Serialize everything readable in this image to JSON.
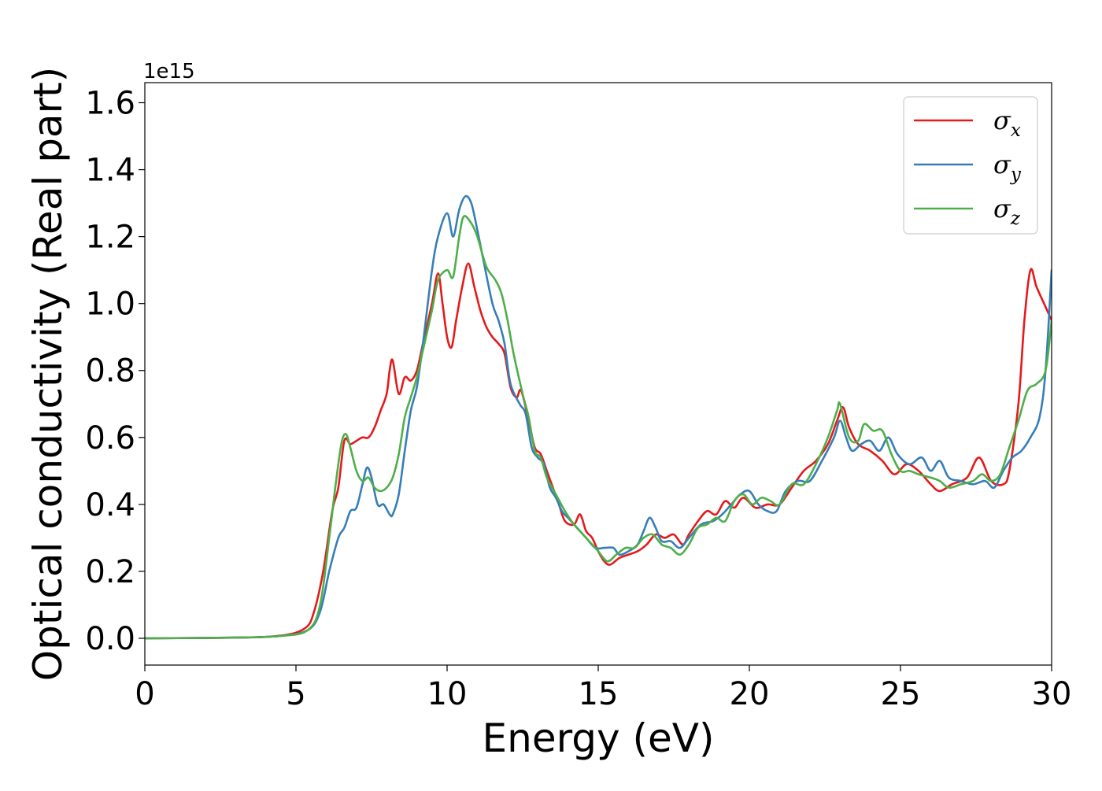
{
  "chart_data": {
    "type": "line",
    "title": "",
    "xlabel": "Energy (eV)",
    "ylabel": "Optical conductivity (Real part)",
    "y_offset_text": "1e15",
    "xlim": [
      0,
      30
    ],
    "ylim": [
      -0.08,
      1.66
    ],
    "xticks": [
      0,
      5,
      10,
      15,
      20,
      25,
      30
    ],
    "xtick_labels": [
      "0",
      "5",
      "10",
      "15",
      "20",
      "25",
      "30"
    ],
    "yticks": [
      0.0,
      0.2,
      0.4,
      0.6,
      0.8,
      1.0,
      1.2,
      1.4,
      1.6
    ],
    "ytick_labels": [
      "0.0",
      "0.2",
      "0.4",
      "0.6",
      "0.8",
      "1.0",
      "1.2",
      "1.4",
      "1.6"
    ],
    "grid": false,
    "legend_position": "top-right",
    "series": [
      {
        "name": "σx",
        "sub": "x",
        "color": "#e41a1c",
        "points": [
          [
            0,
            0
          ],
          [
            3,
            0.002
          ],
          [
            4.5,
            0.008
          ],
          [
            5.3,
            0.03
          ],
          [
            5.6,
            0.08
          ],
          [
            5.9,
            0.2
          ],
          [
            6.2,
            0.38
          ],
          [
            6.4,
            0.45
          ],
          [
            6.6,
            0.59
          ],
          [
            6.8,
            0.58
          ],
          [
            7.0,
            0.59
          ],
          [
            7.2,
            0.6
          ],
          [
            7.4,
            0.6
          ],
          [
            7.6,
            0.63
          ],
          [
            7.8,
            0.68
          ],
          [
            8.0,
            0.73
          ],
          [
            8.1,
            0.8
          ],
          [
            8.2,
            0.83
          ],
          [
            8.4,
            0.73
          ],
          [
            8.6,
            0.78
          ],
          [
            8.8,
            0.77
          ],
          [
            9.0,
            0.8
          ],
          [
            9.2,
            0.88
          ],
          [
            9.5,
            1.0
          ],
          [
            9.7,
            1.09
          ],
          [
            9.85,
            1.0
          ],
          [
            10.0,
            0.9
          ],
          [
            10.15,
            0.87
          ],
          [
            10.3,
            0.95
          ],
          [
            10.5,
            1.05
          ],
          [
            10.7,
            1.12
          ],
          [
            10.9,
            1.05
          ],
          [
            11.1,
            0.98
          ],
          [
            11.3,
            0.93
          ],
          [
            11.5,
            0.9
          ],
          [
            11.7,
            0.88
          ],
          [
            11.9,
            0.85
          ],
          [
            12.1,
            0.75
          ],
          [
            12.3,
            0.72
          ],
          [
            12.45,
            0.74
          ],
          [
            12.7,
            0.65
          ],
          [
            12.9,
            0.57
          ],
          [
            13.1,
            0.55
          ],
          [
            13.3,
            0.5
          ],
          [
            13.5,
            0.45
          ],
          [
            13.7,
            0.4
          ],
          [
            13.9,
            0.35
          ],
          [
            14.2,
            0.34
          ],
          [
            14.4,
            0.37
          ],
          [
            14.6,
            0.32
          ],
          [
            14.8,
            0.3
          ],
          [
            15.0,
            0.26
          ],
          [
            15.2,
            0.23
          ],
          [
            15.4,
            0.22
          ],
          [
            15.7,
            0.24
          ],
          [
            16.0,
            0.25
          ],
          [
            16.3,
            0.26
          ],
          [
            16.6,
            0.28
          ],
          [
            16.9,
            0.31
          ],
          [
            17.2,
            0.3
          ],
          [
            17.5,
            0.31
          ],
          [
            17.8,
            0.28
          ],
          [
            18.0,
            0.31
          ],
          [
            18.3,
            0.35
          ],
          [
            18.6,
            0.38
          ],
          [
            18.9,
            0.37
          ],
          [
            19.2,
            0.41
          ],
          [
            19.5,
            0.39
          ],
          [
            19.8,
            0.42
          ],
          [
            20.2,
            0.39
          ],
          [
            20.6,
            0.4
          ],
          [
            21.0,
            0.4
          ],
          [
            21.4,
            0.45
          ],
          [
            21.8,
            0.5
          ],
          [
            22.2,
            0.53
          ],
          [
            22.6,
            0.58
          ],
          [
            22.9,
            0.65
          ],
          [
            23.1,
            0.69
          ],
          [
            23.3,
            0.63
          ],
          [
            23.6,
            0.58
          ],
          [
            24.0,
            0.56
          ],
          [
            24.4,
            0.53
          ],
          [
            24.8,
            0.49
          ],
          [
            25.2,
            0.52
          ],
          [
            25.6,
            0.5
          ],
          [
            26.0,
            0.46
          ],
          [
            26.3,
            0.44
          ],
          [
            26.7,
            0.46
          ],
          [
            27.2,
            0.48
          ],
          [
            27.6,
            0.54
          ],
          [
            28.0,
            0.47
          ],
          [
            28.4,
            0.46
          ],
          [
            28.6,
            0.5
          ],
          [
            28.9,
            0.7
          ],
          [
            29.1,
            0.95
          ],
          [
            29.3,
            1.1
          ],
          [
            29.5,
            1.05
          ],
          [
            29.8,
            0.99
          ],
          [
            30.0,
            0.95
          ]
        ]
      },
      {
        "name": "σy",
        "sub": "y",
        "color": "#377eb8",
        "points": [
          [
            0,
            0
          ],
          [
            3,
            0.002
          ],
          [
            4.5,
            0.007
          ],
          [
            5.4,
            0.025
          ],
          [
            5.8,
            0.08
          ],
          [
            6.1,
            0.2
          ],
          [
            6.4,
            0.3
          ],
          [
            6.6,
            0.33
          ],
          [
            6.8,
            0.38
          ],
          [
            7.0,
            0.39
          ],
          [
            7.2,
            0.46
          ],
          [
            7.35,
            0.51
          ],
          [
            7.5,
            0.48
          ],
          [
            7.7,
            0.4
          ],
          [
            7.9,
            0.4
          ],
          [
            8.1,
            0.37
          ],
          [
            8.2,
            0.37
          ],
          [
            8.4,
            0.43
          ],
          [
            8.6,
            0.56
          ],
          [
            8.8,
            0.68
          ],
          [
            9.0,
            0.75
          ],
          [
            9.2,
            0.88
          ],
          [
            9.5,
            1.1
          ],
          [
            9.7,
            1.2
          ],
          [
            10.0,
            1.27
          ],
          [
            10.2,
            1.2
          ],
          [
            10.4,
            1.28
          ],
          [
            10.6,
            1.32
          ],
          [
            10.8,
            1.3
          ],
          [
            11.0,
            1.22
          ],
          [
            11.2,
            1.13
          ],
          [
            11.5,
            1.0
          ],
          [
            11.7,
            0.95
          ],
          [
            11.9,
            0.88
          ],
          [
            12.1,
            0.76
          ],
          [
            12.4,
            0.7
          ],
          [
            12.6,
            0.67
          ],
          [
            12.8,
            0.57
          ],
          [
            13.0,
            0.54
          ],
          [
            13.2,
            0.52
          ],
          [
            13.4,
            0.45
          ],
          [
            13.6,
            0.42
          ],
          [
            13.8,
            0.38
          ],
          [
            14.0,
            0.36
          ],
          [
            14.3,
            0.33
          ],
          [
            14.6,
            0.3
          ],
          [
            14.9,
            0.27
          ],
          [
            15.2,
            0.27
          ],
          [
            15.5,
            0.27
          ],
          [
            15.7,
            0.25
          ],
          [
            16.0,
            0.26
          ],
          [
            16.3,
            0.28
          ],
          [
            16.5,
            0.32
          ],
          [
            16.7,
            0.36
          ],
          [
            16.9,
            0.33
          ],
          [
            17.1,
            0.29
          ],
          [
            17.4,
            0.29
          ],
          [
            17.7,
            0.27
          ],
          [
            18.0,
            0.3
          ],
          [
            18.4,
            0.34
          ],
          [
            18.8,
            0.35
          ],
          [
            19.1,
            0.37
          ],
          [
            19.4,
            0.4
          ],
          [
            19.7,
            0.43
          ],
          [
            20.0,
            0.44
          ],
          [
            20.3,
            0.4
          ],
          [
            20.6,
            0.38
          ],
          [
            20.9,
            0.38
          ],
          [
            21.2,
            0.44
          ],
          [
            21.6,
            0.47
          ],
          [
            22.0,
            0.47
          ],
          [
            22.4,
            0.53
          ],
          [
            22.8,
            0.6
          ],
          [
            23.0,
            0.65
          ],
          [
            23.2,
            0.6
          ],
          [
            23.4,
            0.56
          ],
          [
            23.7,
            0.58
          ],
          [
            24.0,
            0.59
          ],
          [
            24.3,
            0.56
          ],
          [
            24.6,
            0.6
          ],
          [
            24.9,
            0.55
          ],
          [
            25.3,
            0.52
          ],
          [
            25.7,
            0.54
          ],
          [
            26.0,
            0.5
          ],
          [
            26.3,
            0.53
          ],
          [
            26.6,
            0.48
          ],
          [
            27.0,
            0.47
          ],
          [
            27.4,
            0.46
          ],
          [
            27.8,
            0.47
          ],
          [
            28.1,
            0.45
          ],
          [
            28.4,
            0.5
          ],
          [
            28.7,
            0.54
          ],
          [
            29.0,
            0.56
          ],
          [
            29.3,
            0.6
          ],
          [
            29.6,
            0.66
          ],
          [
            29.8,
            0.8
          ],
          [
            30.0,
            1.1
          ]
        ]
      },
      {
        "name": "σz",
        "sub": "z",
        "color": "#4daf4a",
        "points": [
          [
            0,
            0
          ],
          [
            3,
            0.002
          ],
          [
            4.5,
            0.007
          ],
          [
            5.4,
            0.025
          ],
          [
            5.8,
            0.1
          ],
          [
            6.1,
            0.3
          ],
          [
            6.3,
            0.45
          ],
          [
            6.5,
            0.58
          ],
          [
            6.65,
            0.61
          ],
          [
            6.8,
            0.57
          ],
          [
            7.0,
            0.5
          ],
          [
            7.2,
            0.47
          ],
          [
            7.4,
            0.48
          ],
          [
            7.6,
            0.45
          ],
          [
            7.8,
            0.44
          ],
          [
            8.0,
            0.45
          ],
          [
            8.2,
            0.48
          ],
          [
            8.4,
            0.55
          ],
          [
            8.6,
            0.66
          ],
          [
            8.8,
            0.72
          ],
          [
            9.0,
            0.78
          ],
          [
            9.2,
            0.86
          ],
          [
            9.5,
            0.98
          ],
          [
            9.7,
            1.07
          ],
          [
            10.0,
            1.1
          ],
          [
            10.2,
            1.08
          ],
          [
            10.4,
            1.2
          ],
          [
            10.55,
            1.26
          ],
          [
            10.8,
            1.24
          ],
          [
            11.0,
            1.2
          ],
          [
            11.3,
            1.11
          ],
          [
            11.6,
            1.07
          ],
          [
            11.8,
            1.03
          ],
          [
            12.0,
            0.95
          ],
          [
            12.2,
            0.85
          ],
          [
            12.5,
            0.73
          ],
          [
            12.7,
            0.66
          ],
          [
            12.9,
            0.56
          ],
          [
            13.1,
            0.54
          ],
          [
            13.3,
            0.48
          ],
          [
            13.6,
            0.43
          ],
          [
            13.9,
            0.38
          ],
          [
            14.2,
            0.34
          ],
          [
            14.5,
            0.31
          ],
          [
            14.8,
            0.28
          ],
          [
            15.0,
            0.26
          ],
          [
            15.3,
            0.23
          ],
          [
            15.6,
            0.25
          ],
          [
            15.9,
            0.27
          ],
          [
            16.2,
            0.27
          ],
          [
            16.5,
            0.3
          ],
          [
            16.8,
            0.31
          ],
          [
            17.1,
            0.28
          ],
          [
            17.4,
            0.27
          ],
          [
            17.7,
            0.25
          ],
          [
            18.0,
            0.28
          ],
          [
            18.3,
            0.33
          ],
          [
            18.6,
            0.34
          ],
          [
            18.9,
            0.36
          ],
          [
            19.2,
            0.35
          ],
          [
            19.5,
            0.41
          ],
          [
            19.8,
            0.43
          ],
          [
            20.1,
            0.4
          ],
          [
            20.4,
            0.42
          ],
          [
            20.7,
            0.41
          ],
          [
            21.0,
            0.4
          ],
          [
            21.4,
            0.46
          ],
          [
            21.8,
            0.46
          ],
          [
            22.2,
            0.52
          ],
          [
            22.6,
            0.6
          ],
          [
            22.9,
            0.68
          ],
          [
            23.0,
            0.7
          ],
          [
            23.3,
            0.6
          ],
          [
            23.6,
            0.59
          ],
          [
            23.8,
            0.64
          ],
          [
            24.1,
            0.62
          ],
          [
            24.4,
            0.62
          ],
          [
            24.7,
            0.55
          ],
          [
            25.0,
            0.5
          ],
          [
            25.3,
            0.5
          ],
          [
            25.6,
            0.49
          ],
          [
            26.0,
            0.48
          ],
          [
            26.3,
            0.47
          ],
          [
            26.6,
            0.45
          ],
          [
            27.0,
            0.46
          ],
          [
            27.4,
            0.47
          ],
          [
            27.7,
            0.49
          ],
          [
            28.0,
            0.47
          ],
          [
            28.3,
            0.49
          ],
          [
            28.6,
            0.57
          ],
          [
            28.9,
            0.65
          ],
          [
            29.2,
            0.74
          ],
          [
            29.5,
            0.76
          ],
          [
            29.8,
            0.8
          ],
          [
            30.0,
            0.95
          ]
        ]
      }
    ]
  }
}
